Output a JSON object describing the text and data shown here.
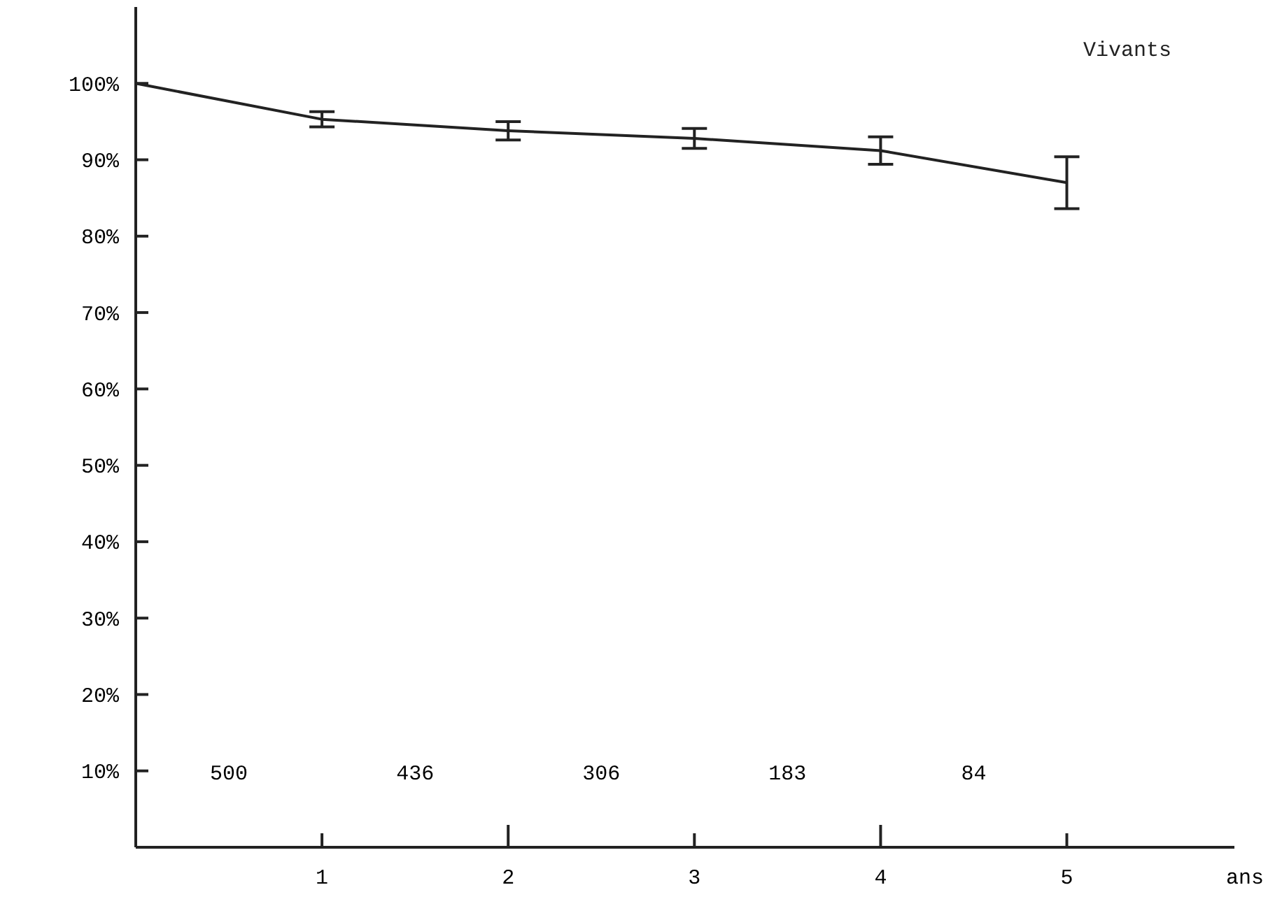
{
  "chart_data": {
    "type": "line",
    "xlabel": "ans",
    "x": [
      0,
      1,
      2,
      3,
      4,
      5
    ],
    "series": [
      {
        "name": "Vivants",
        "color": "#222222",
        "values": [
          100,
          95.3,
          93.8,
          92.8,
          91.2,
          87.0
        ],
        "errors": [
          null,
          1,
          1.2,
          1.3,
          1.8,
          3.4
        ]
      }
    ],
    "xlim": [
      0,
      5.9
    ],
    "xticks": [
      1,
      2,
      3,
      4,
      5
    ],
    "ylim": [
      0,
      110
    ],
    "yticks": [
      {
        "value": 10,
        "label": "10%"
      },
      {
        "value": 20,
        "label": "20%"
      },
      {
        "value": 30,
        "label": "30%"
      },
      {
        "value": 40,
        "label": "40%"
      },
      {
        "value": 50,
        "label": "50%"
      },
      {
        "value": 60,
        "label": "60%"
      },
      {
        "value": 70,
        "label": "70%"
      },
      {
        "value": 80,
        "label": "80%"
      },
      {
        "value": 90,
        "label": "90%"
      },
      {
        "value": 100,
        "label": "100%"
      }
    ],
    "annotations": [
      "500",
      "436",
      "306",
      "183",
      "84"
    ],
    "legend": "top right",
    "grid": false,
    "line_style": "solid"
  }
}
